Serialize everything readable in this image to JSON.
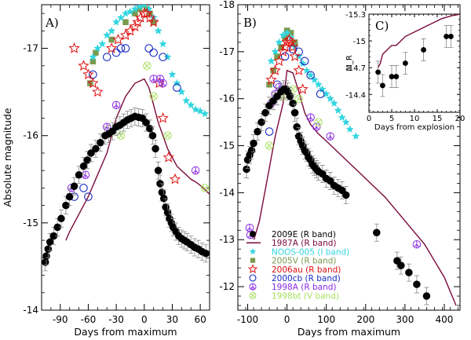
{
  "figure_caption": "",
  "chart_data": [
    {
      "panel": "A",
      "type": "scatter",
      "panel_label": "A)",
      "xlabel": "Days from maximum",
      "ylabel": "Absolute magnitude",
      "xlim": [
        -110,
        70
      ],
      "ylim": [
        -14,
        -17.5
      ],
      "xticks": [
        "-90",
        "-60",
        "-30",
        "0",
        "30",
        "60"
      ],
      "xtick_values": [
        -90,
        -60,
        -30,
        0,
        30,
        60
      ],
      "yticks": [
        "-14",
        "-15",
        "-16",
        "-17"
      ],
      "ytick_values": [
        -14,
        -15,
        -16,
        -17
      ],
      "series": [
        {
          "name": "2009E (R band)",
          "marker": "dot",
          "color": "#000000",
          "x": [
            -106,
            -105,
            -103,
            -101,
            -97,
            -93,
            -89,
            -84,
            -80,
            -75,
            -70,
            -65,
            -61,
            -57,
            -52,
            -47,
            -42,
            -38,
            -34,
            -30,
            -26,
            -22,
            -18,
            -14,
            -10,
            -6,
            -2,
            2,
            6,
            9,
            12,
            15,
            17,
            19,
            21,
            23,
            25,
            27,
            29,
            31,
            34,
            37,
            40,
            43,
            46,
            50,
            54,
            58,
            62,
            66
          ],
          "y": [
            -14.55,
            -14.62,
            -14.7,
            -14.78,
            -14.85,
            -14.95,
            -15.05,
            -15.2,
            -15.3,
            -15.42,
            -15.55,
            -15.65,
            -15.72,
            -15.8,
            -15.85,
            -15.92,
            -16.0,
            -16.02,
            -16.05,
            -16.1,
            -16.12,
            -16.15,
            -16.18,
            -16.2,
            -16.22,
            -16.21,
            -16.2,
            -16.15,
            -16.08,
            -16.0,
            -15.85,
            -15.6,
            -15.45,
            -15.35,
            -15.28,
            -15.18,
            -15.12,
            -15.05,
            -15.0,
            -14.95,
            -14.9,
            -14.85,
            -14.82,
            -14.8,
            -14.78,
            -14.75,
            -14.72,
            -14.7,
            -14.67,
            -14.65
          ]
        },
        {
          "name": "1987A (R band)",
          "marker": "line",
          "color": "#7a0a3c",
          "x": [
            -84,
            -80,
            -70,
            -60,
            -50,
            -40,
            -35,
            -30,
            -20,
            -10,
            0,
            5,
            10,
            15,
            20,
            25,
            30,
            35,
            40,
            45,
            50,
            55,
            60,
            65,
            70
          ],
          "y": [
            -14.8,
            -14.9,
            -15.1,
            -15.3,
            -15.55,
            -15.8,
            -16.0,
            -16.2,
            -16.45,
            -16.6,
            -16.65,
            -16.55,
            -16.35,
            -16.15,
            -16.0,
            -15.85,
            -15.75,
            -15.65,
            -15.6,
            -15.55,
            -15.5,
            -15.47,
            -15.43,
            -15.38,
            -15.33
          ]
        },
        {
          "name": "NOOS-005 (I band)",
          "marker": "star5",
          "color": "#33d6e0",
          "x": [
            -55,
            -50,
            -45,
            -40,
            -35,
            -30,
            -25,
            -20,
            -15,
            -10,
            -5,
            0,
            5,
            10,
            15,
            20,
            25,
            30,
            35,
            40,
            45,
            50,
            55,
            60,
            65
          ],
          "y": [
            -16.9,
            -17.0,
            -17.05,
            -17.15,
            -17.2,
            -17.3,
            -17.35,
            -17.4,
            -17.42,
            -17.45,
            -17.48,
            -17.5,
            -17.45,
            -17.35,
            -17.2,
            -17.05,
            -16.9,
            -16.7,
            -16.6,
            -16.5,
            -16.4,
            -16.35,
            -16.3,
            -16.28,
            -16.25
          ]
        },
        {
          "name": "2005V (R band)",
          "marker": "square",
          "color": "#7a9a50",
          "x": [
            -58,
            -55,
            -52,
            -35,
            -20,
            -10,
            -5,
            0,
            3,
            6,
            10
          ],
          "y": [
            -16.6,
            -16.85,
            -16.95,
            -17.1,
            -17.3,
            -17.4,
            -17.45,
            -17.5,
            -17.45,
            -17.4,
            -17.3
          ]
        },
        {
          "name": "2006au (R band)",
          "marker": "star5-open",
          "color": "#e01010",
          "x": [
            -75,
            -65,
            -60,
            -55,
            -50,
            -35,
            -28,
            -20,
            -15,
            -10,
            -7,
            -4,
            0,
            3,
            6,
            10,
            16,
            20,
            26,
            33
          ],
          "y": [
            -17.0,
            -16.8,
            -16.7,
            -16.6,
            -16.5,
            -17.0,
            -17.1,
            -17.15,
            -17.2,
            -17.25,
            -17.3,
            -17.35,
            -17.4,
            -17.4,
            -17.35,
            -17.3,
            -16.6,
            -16.2,
            -15.75,
            -15.5
          ]
        },
        {
          "name": "2000cb (R band)",
          "marker": "circle-open",
          "color": "#1a2cc0",
          "x": [
            -75,
            -65,
            -60,
            -55,
            -40,
            -30,
            -25,
            -20,
            5,
            10,
            20,
            35
          ],
          "y": [
            -15.3,
            -15.4,
            -15.3,
            -16.7,
            -16.9,
            -16.95,
            -17.0,
            -17.0,
            -17.0,
            -16.95,
            -16.9,
            -16.55
          ]
        },
        {
          "name": "1998A (R band)",
          "marker": "peace",
          "color": "#8a2be2",
          "x": [
            -78,
            -63,
            -40,
            -30,
            10,
            17,
            20,
            55
          ],
          "y": [
            -15.4,
            -15.55,
            -16.1,
            -16.35,
            -16.65,
            -16.65,
            -16.6,
            -15.6
          ]
        },
        {
          "name": "1998bt (V band)",
          "marker": "circle-cross",
          "color": "#a8e060",
          "x": [
            -25,
            3,
            10,
            25,
            65
          ],
          "y": [
            -16.0,
            -16.8,
            -16.45,
            -16.0,
            -15.4
          ]
        }
      ]
    },
    {
      "panel": "B",
      "type": "scatter",
      "panel_label": "B)",
      "xlabel": "Days from maximum",
      "ylabel": "",
      "xlim": [
        -125,
        440
      ],
      "ylim": [
        -11.5,
        -18
      ],
      "xticks": [
        "-100",
        "0",
        "100",
        "200",
        "300",
        "400"
      ],
      "xtick_values": [
        -100,
        0,
        100,
        200,
        300,
        400
      ],
      "yticks": [
        "-12",
        "-13",
        "-14",
        "-15",
        "-16",
        "-17",
        "-18"
      ],
      "ytick_values": [
        -12,
        -13,
        -14,
        -15,
        -16,
        -17,
        -18
      ],
      "series": [
        {
          "name": "2009E (R band)",
          "marker": "dot",
          "color": "#000000",
          "x": [
            -103,
            -100,
            -95,
            -90,
            -85,
            -75,
            -65,
            -55,
            -45,
            -35,
            -25,
            -15,
            -8,
            -2,
            2,
            8,
            15,
            20,
            25,
            30,
            35,
            40,
            45,
            50,
            55,
            60,
            65,
            70,
            75,
            80,
            90,
            100,
            110,
            120,
            130,
            140,
            150,
            228,
            280,
            290,
            310,
            330,
            355
          ],
          "y": [
            -14.5,
            -14.7,
            -14.8,
            -14.9,
            -15.05,
            -15.3,
            -15.5,
            -15.7,
            -15.85,
            -15.95,
            -16.05,
            -16.15,
            -16.2,
            -16.2,
            -16.15,
            -16.05,
            -15.9,
            -15.7,
            -15.4,
            -15.2,
            -15.1,
            -15.0,
            -14.9,
            -14.85,
            -14.75,
            -14.7,
            -14.6,
            -14.55,
            -14.5,
            -14.45,
            -14.4,
            -14.3,
            -14.25,
            -14.15,
            -14.1,
            -14.05,
            -13.95,
            -13.15,
            -12.55,
            -12.45,
            -12.3,
            -12.05,
            -11.8
          ]
        },
        {
          "name": "1987A (R band)",
          "marker": "line",
          "color": "#7a0a3c",
          "x": [
            -84,
            -70,
            -50,
            -30,
            -10,
            0,
            15,
            30,
            45,
            60,
            80,
            100,
            150,
            200,
            250,
            300,
            350,
            400,
            430
          ],
          "y": [
            -13.0,
            -13.4,
            -14.3,
            -15.2,
            -15.9,
            -16.6,
            -16.55,
            -16.15,
            -15.7,
            -15.45,
            -15.25,
            -15.1,
            -14.7,
            -14.3,
            -13.9,
            -13.4,
            -12.9,
            -12.2,
            -11.6
          ]
        },
        {
          "name": "NOOS-005 (I band)",
          "marker": "star5",
          "color": "#33d6e0",
          "x": [
            -40,
            -30,
            -20,
            -10,
            0,
            10,
            20,
            30,
            40,
            50,
            60,
            70,
            80,
            90,
            100,
            110,
            120,
            130,
            140,
            150,
            160,
            175
          ],
          "y": [
            -16.8,
            -17.0,
            -17.2,
            -17.35,
            -17.4,
            -17.3,
            -17.1,
            -16.9,
            -16.75,
            -16.6,
            -16.5,
            -16.4,
            -16.3,
            -16.2,
            -16.1,
            -16.0,
            -15.9,
            -15.75,
            -15.6,
            -15.5,
            -15.35,
            -15.2
          ]
        },
        {
          "name": "2005V (R band)",
          "marker": "square",
          "color": "#7a9a50",
          "x": [
            -45,
            -35,
            -25,
            -15,
            -5,
            0,
            10,
            20
          ],
          "y": [
            -16.3,
            -16.6,
            -16.9,
            -17.1,
            -17.3,
            -17.45,
            -17.4,
            -17.2
          ]
        },
        {
          "name": "2006au (R band)",
          "marker": "star5-open",
          "color": "#e01010",
          "x": [
            -40,
            -30,
            -20,
            -10,
            -5,
            0,
            5,
            10,
            15,
            20,
            30,
            40
          ],
          "y": [
            -16.4,
            -16.6,
            -16.8,
            -17.0,
            -17.1,
            -17.2,
            -17.25,
            -17.2,
            -17.1,
            -16.9,
            -16.6,
            -16.2
          ]
        },
        {
          "name": "2000cb (R band)",
          "marker": "circle-open",
          "color": "#1a2cc0",
          "x": [
            -45,
            -25,
            -5,
            15,
            30,
            45,
            60,
            85
          ],
          "y": [
            -15.3,
            -16.3,
            -16.9,
            -17.05,
            -17.0,
            -16.8,
            -16.5,
            -16.1
          ]
        },
        {
          "name": "1998A (R band)",
          "marker": "peace",
          "color": "#8a2be2",
          "x": [
            -95,
            -93,
            -40,
            -30,
            -20,
            60,
            75,
            110,
            330
          ],
          "y": [
            -13.25,
            -13.1,
            -15.9,
            -16.1,
            -16.25,
            -15.6,
            -15.4,
            -15.2,
            -12.9
          ]
        },
        {
          "name": "1998bt (V band)",
          "marker": "circle-cross",
          "color": "#a8e060",
          "x": [
            -45,
            -10,
            15,
            30,
            80
          ],
          "y": [
            -15.0,
            -16.05,
            -16.2,
            -16.0,
            -15.5
          ]
        }
      ]
    },
    {
      "panel": "C",
      "type": "scatter",
      "panel_label": "C)",
      "xlabel": "Days from explosion",
      "ylabel": "M_R",
      "xlim": [
        0,
        20
      ],
      "ylim": [
        -14.2,
        -15.3
      ],
      "xticks": [
        "0",
        "5",
        "10",
        "15",
        "20"
      ],
      "xtick_values": [
        0,
        5,
        10,
        15,
        20
      ],
      "yticks": [
        "-14.4",
        "-14.7",
        "-15",
        "-15.3"
      ],
      "ytick_values": [
        -14.4,
        -14.7,
        -15,
        -15.3
      ],
      "series": [
        {
          "name": "2009E (R band)",
          "marker": "dot",
          "color": "#000000",
          "x": [
            2,
            3,
            5,
            6,
            8,
            12,
            17,
            18
          ],
          "y": [
            -14.65,
            -14.5,
            -14.6,
            -14.6,
            -14.75,
            -14.9,
            -15.05,
            -15.05
          ]
        },
        {
          "name": "1987A (R band)",
          "marker": "line",
          "color": "#7a0a3c",
          "x": [
            2,
            2.5,
            3,
            4,
            5,
            6,
            7,
            8,
            10,
            12,
            14,
            16,
            18,
            20
          ],
          "y": [
            -14.7,
            -14.75,
            -14.85,
            -14.9,
            -14.95,
            -14.95,
            -15.0,
            -15.05,
            -15.1,
            -15.15,
            -15.2,
            -15.25,
            -15.28,
            -15.3
          ]
        }
      ]
    }
  ],
  "legend": {
    "entries": [
      {
        "label": "2009E (R band)",
        "marker": "dot",
        "color": "#000000"
      },
      {
        "label": "1987A (R band)",
        "marker": "line",
        "color": "#7a0a3c"
      },
      {
        "label": "NOOS-005 (I band)",
        "marker": "star5",
        "color": "#33d6e0"
      },
      {
        "label": "2005V (R band)",
        "marker": "square",
        "color": "#7a9a50"
      },
      {
        "label": "2006au (R band)",
        "marker": "star5-open",
        "color": "#e01010"
      },
      {
        "label": "2000cb (R band)",
        "marker": "circle-open",
        "color": "#1a2cc0"
      },
      {
        "label": "1998A (R band)",
        "marker": "peace",
        "color": "#8a2be2"
      },
      {
        "label": "1998bt (V band)",
        "marker": "circle-cross",
        "color": "#a8e060"
      }
    ]
  }
}
